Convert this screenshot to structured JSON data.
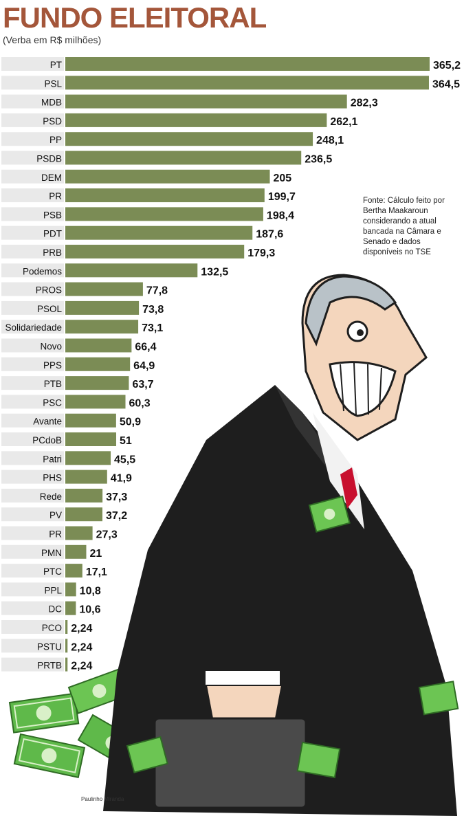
{
  "title": "FUNDO ELEITORAL",
  "subtitle": "(Verba em R$ milhões)",
  "source_note": "Fonte: Cálculo feito por Bertha Maakaroun considerando a atual bancada na Câmara e Senado e dados disponíveis no TSE",
  "credit": "Paulinho Miranda",
  "colors": {
    "bar": "#7b8c55",
    "row_stripe": "#e9e9e9",
    "title": "#a4563a",
    "suit": "#1e1e1e",
    "money": "#5fb94a"
  },
  "chart_data": {
    "type": "bar",
    "orientation": "horizontal",
    "title": "FUNDO ELEITORAL",
    "subtitle": "(Verba em R$ milhões)",
    "xlabel": "",
    "ylabel": "",
    "xlim": [
      0,
      365.2
    ],
    "grid": false,
    "legend": "none",
    "categories": [
      "PT",
      "PSL",
      "MDB",
      "PSD",
      "PP",
      "PSDB",
      "DEM",
      "PR",
      "PSB",
      "PDT",
      "PRB",
      "Podemos",
      "PROS",
      "PSOL",
      "Solidariedade",
      "Novo",
      "PPS",
      "PTB",
      "PSC",
      "Avante",
      "PCdoB",
      "Patri",
      "PHS",
      "Rede",
      "PV",
      "PR",
      "PMN",
      "PTC",
      "PPL",
      "DC",
      "PCO",
      "PSTU",
      "PRTB"
    ],
    "values": [
      365.2,
      364.5,
      282.3,
      262.1,
      248.1,
      236.5,
      205,
      199.7,
      198.4,
      187.6,
      179.3,
      132.5,
      77.8,
      73.8,
      73.1,
      66.4,
      64.9,
      63.7,
      60.3,
      50.9,
      51,
      45.5,
      41.9,
      37.3,
      37.2,
      27.3,
      21,
      17.1,
      10.8,
      10.6,
      2.24,
      2.24,
      2.24
    ],
    "value_labels": [
      "365,2",
      "364,5",
      "282,3",
      "262,1",
      "248,1",
      "236,5",
      "205",
      "199,7",
      "198,4",
      "187,6",
      "179,3",
      "132,5",
      "77,8",
      "73,8",
      "73,1",
      "66,4",
      "64,9",
      "63,7",
      "60,3",
      "50,9",
      "51",
      "45,5",
      "41,9",
      "37,3",
      "37,2",
      "27,3",
      "21",
      "17,1",
      "10,8",
      "10,6",
      "2,24",
      "2,24",
      "2,24"
    ]
  }
}
